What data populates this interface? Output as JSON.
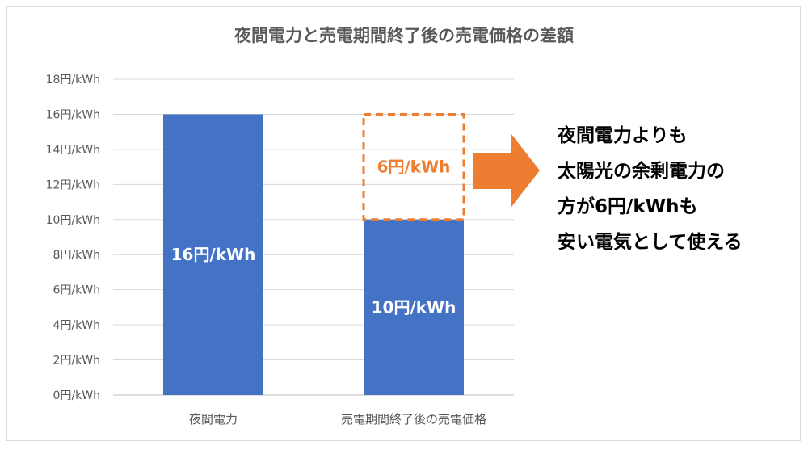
{
  "chart_data": {
    "type": "bar",
    "title": "夜間電力と売電期間終了後の売電価格の差額",
    "categories": [
      "夜間電力",
      "売電期間終了後の売電価格"
    ],
    "values": [
      16,
      10
    ],
    "data_labels": [
      "16円/kWh",
      "10円/kWh"
    ],
    "y_ticks": [
      "0円/kWh",
      "2円/kWh",
      "4円/kWh",
      "6円/kWh",
      "8円/kWh",
      "10円/kWh",
      "12円/kWh",
      "14円/kWh",
      "16円/kWh",
      "18円/kWh"
    ],
    "ylim": [
      0,
      18
    ],
    "grid": true,
    "bar_color": "#4472c4",
    "difference": {
      "from": 10,
      "to": 16,
      "label": "6円/kWh",
      "color": "#ed7d31"
    }
  },
  "callout": {
    "lines": [
      "夜間電力よりも",
      "太陽光の余剰電力の",
      "方が6円/kWhも",
      "安い電気として使える"
    ],
    "arrow_color": "#ed7d31"
  }
}
